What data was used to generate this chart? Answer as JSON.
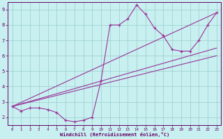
{
  "xlabel": "Windchill (Refroidissement éolien,°C)",
  "bg_color": "#c8f0f0",
  "line_color": "#993399",
  "grid_color": "#99cccc",
  "axis_color": "#660066",
  "x_values": [
    0,
    1,
    2,
    3,
    4,
    5,
    6,
    7,
    8,
    9,
    10,
    11,
    12,
    13,
    14,
    15,
    16,
    17,
    18,
    19,
    20,
    21,
    22,
    23
  ],
  "y_main": [
    2.7,
    2.4,
    2.6,
    2.6,
    2.5,
    2.3,
    1.8,
    1.7,
    1.8,
    2.0,
    4.4,
    8.0,
    8.0,
    8.4,
    9.3,
    8.7,
    7.8,
    7.3,
    6.4,
    6.3,
    6.3,
    7.0,
    8.0,
    8.8
  ],
  "trend_lines": [
    [
      [
        0,
        2.7
      ],
      [
        23,
        8.8
      ]
    ],
    [
      [
        0,
        2.7
      ],
      [
        23,
        6.5
      ]
    ],
    [
      [
        0,
        2.7
      ],
      [
        23,
        6.0
      ]
    ]
  ],
  "xlim": [
    -0.5,
    23.5
  ],
  "ylim": [
    1.5,
    9.5
  ],
  "yticks": [
    2,
    3,
    4,
    5,
    6,
    7,
    8,
    9
  ],
  "xticks": [
    0,
    1,
    2,
    3,
    4,
    5,
    6,
    7,
    8,
    9,
    10,
    11,
    12,
    13,
    14,
    15,
    16,
    17,
    18,
    19,
    20,
    21,
    22,
    23
  ]
}
